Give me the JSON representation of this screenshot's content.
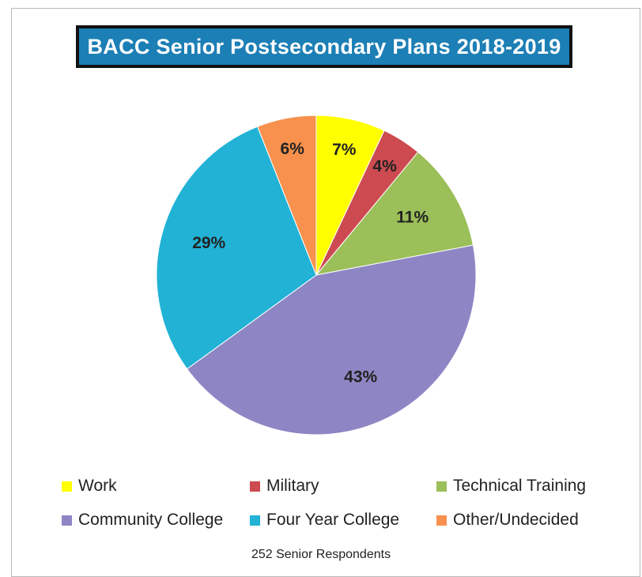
{
  "chart_data": {
    "type": "pie",
    "title": "BACC Senior Postsecondary Plans 2018-2019",
    "categories": [
      "Work",
      "Military",
      "Technical Training",
      "Community College",
      "Four Year College",
      "Other/Undecided"
    ],
    "values": [
      7,
      4,
      11,
      43,
      29,
      6
    ],
    "labels": [
      "7%",
      "4%",
      "11%",
      "43%",
      "29%",
      "6%"
    ],
    "colors": [
      "#ffff00",
      "#cd4b50",
      "#9bbf59",
      "#8e86c4",
      "#21b2d6",
      "#f7914d"
    ],
    "legend_position": "bottom",
    "note": "252 Senior Respondents"
  }
}
